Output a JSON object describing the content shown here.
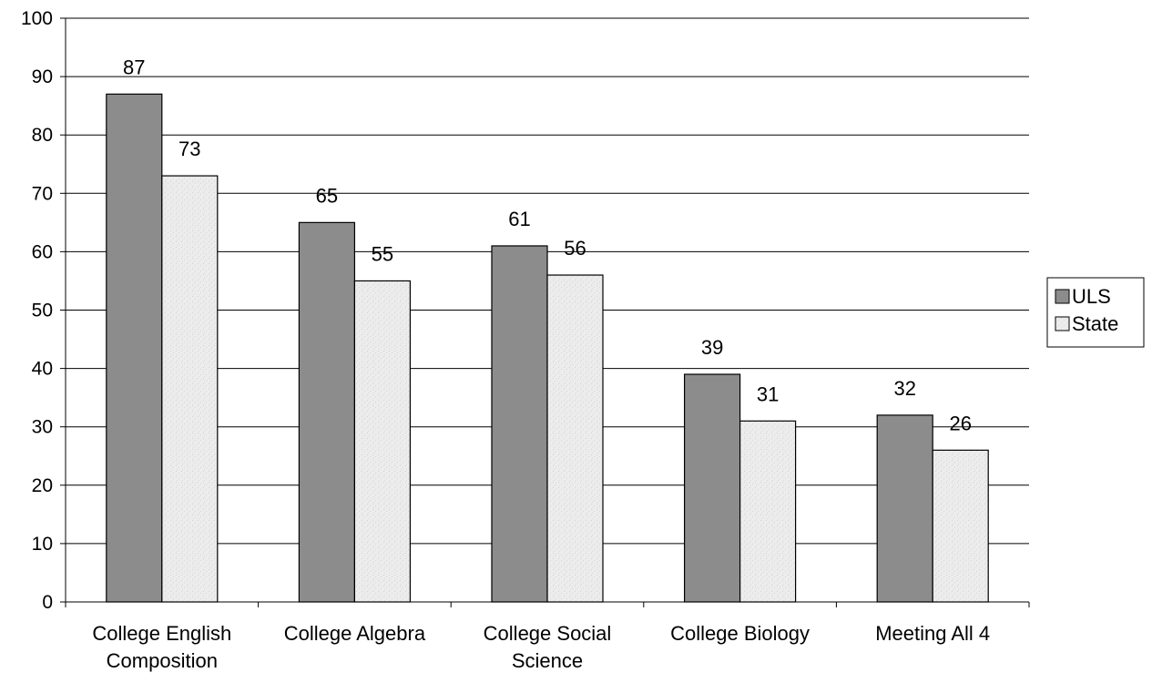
{
  "chart_data": {
    "type": "bar",
    "categories": [
      [
        "College English",
        "Composition"
      ],
      [
        "College Algebra"
      ],
      [
        "College Social",
        "Science"
      ],
      [
        "College Biology"
      ],
      [
        "Meeting All 4"
      ]
    ],
    "series": [
      {
        "name": "ULS",
        "values": [
          87,
          65,
          61,
          39,
          32
        ],
        "color": "#8c8c8c"
      },
      {
        "name": "State",
        "values": [
          73,
          55,
          56,
          31,
          26
        ],
        "color": "#e8e8e8"
      }
    ],
    "ylim": [
      0,
      100
    ],
    "yticks": [
      0,
      10,
      20,
      30,
      40,
      50,
      60,
      70,
      80,
      90,
      100
    ],
    "grid": true,
    "legend": "right",
    "data_labels": true
  }
}
